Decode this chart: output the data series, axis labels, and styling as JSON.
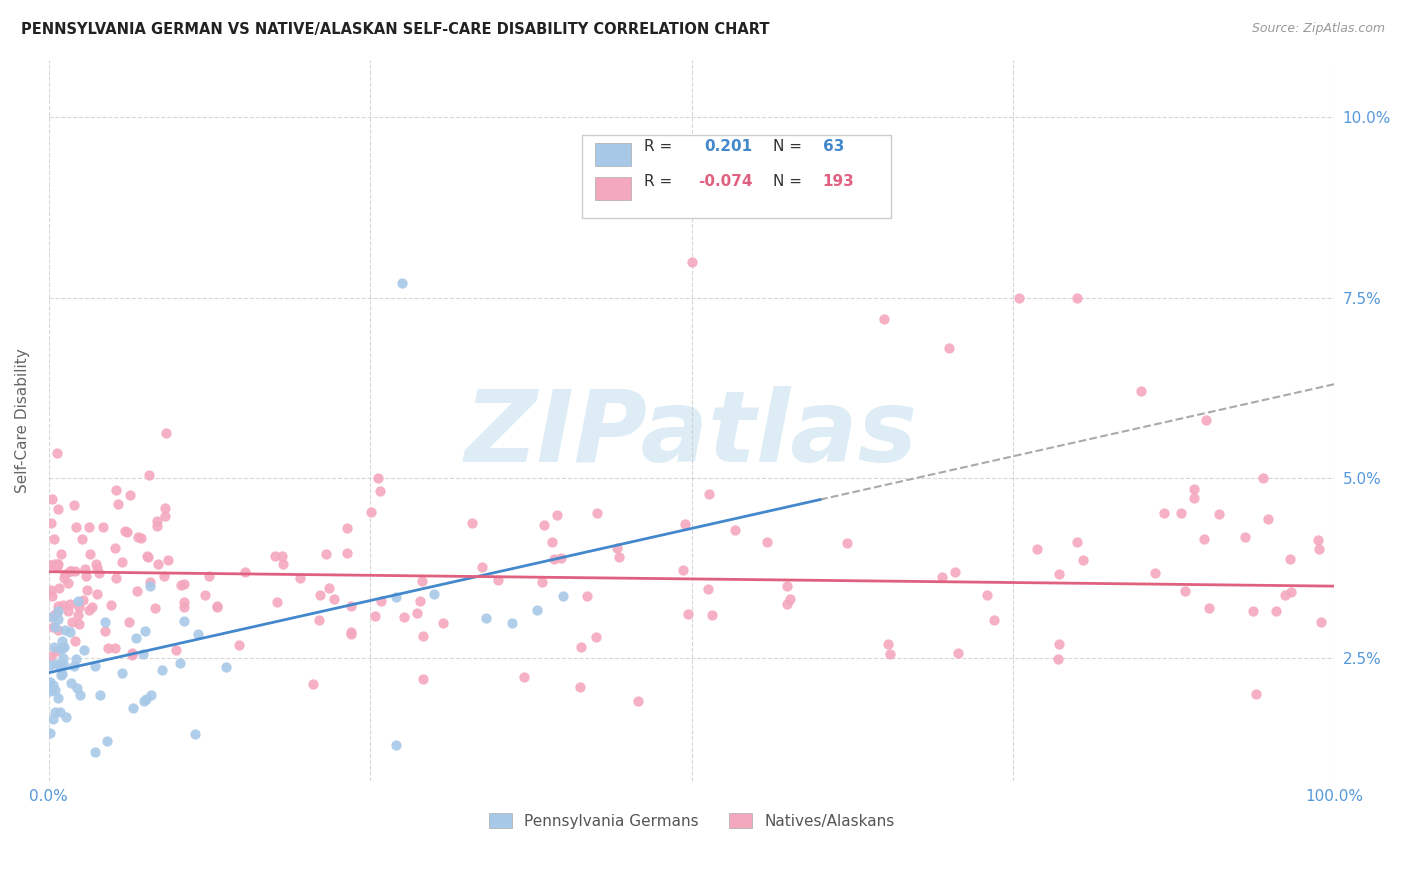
{
  "title": "PENNSYLVANIA GERMAN VS NATIVE/ALASKAN SELF-CARE DISABILITY CORRELATION CHART",
  "source_text": "Source: ZipAtlas.com",
  "ylabel": "Self-Care Disability",
  "xlim": [
    0.0,
    1.0
  ],
  "ylim": [
    0.008,
    0.108
  ],
  "blue_color": "#a8c8e8",
  "pink_color": "#f4a8be",
  "blue_line_color": "#4488cc",
  "pink_line_color": "#e06080",
  "dash_line_color": "#aaaaaa",
  "legend_blue_label": "Pennsylvania Germans",
  "legend_pink_label": "Natives/Alaskans",
  "watermark": "ZIPatlas",
  "watermark_color": "#c8e0f0",
  "grid_color": "#cccccc",
  "right_tick_color": "#5599dd",
  "title_color": "#222222",
  "source_color": "#999999",
  "ylabel_color": "#666666"
}
